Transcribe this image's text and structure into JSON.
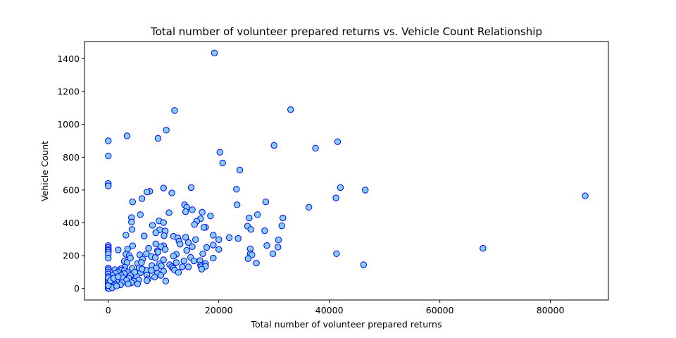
{
  "chart_data": {
    "type": "scatter",
    "title": "Total number of volunteer prepared returns vs. Vehicle Count Relationship",
    "xlabel": "Total number of volunteer prepared returns",
    "ylabel": "Vehicle Count",
    "xlim": [
      -4300,
      90500
    ],
    "ylim": [
      -70,
      1505
    ],
    "xticks": [
      0,
      20000,
      40000,
      60000,
      80000
    ],
    "yticks": [
      0,
      200,
      400,
      600,
      800,
      1000,
      1200,
      1400
    ],
    "grid": false,
    "legend": "none",
    "colors": {
      "marker_fill": "#87CEEB",
      "marker_edge": "#0000FF"
    },
    "points": [
      [
        19200,
        1435
      ],
      [
        33000,
        1090
      ],
      [
        12000,
        1085
      ],
      [
        10500,
        965
      ],
      [
        3400,
        930
      ],
      [
        9000,
        915
      ],
      [
        0,
        900
      ],
      [
        41500,
        895
      ],
      [
        30000,
        872
      ],
      [
        37500,
        855
      ],
      [
        20200,
        830
      ],
      [
        0,
        808
      ],
      [
        20700,
        765
      ],
      [
        23800,
        722
      ],
      [
        0,
        640
      ],
      [
        0,
        625
      ],
      [
        42000,
        615
      ],
      [
        15000,
        615
      ],
      [
        10000,
        612
      ],
      [
        46500,
        600
      ],
      [
        7500,
        592
      ],
      [
        7000,
        588
      ],
      [
        23200,
        605
      ],
      [
        11500,
        582
      ],
      [
        86300,
        565
      ],
      [
        6100,
        548
      ],
      [
        41200,
        552
      ],
      [
        4400,
        528
      ],
      [
        28500,
        528
      ],
      [
        23300,
        510
      ],
      [
        13800,
        510
      ],
      [
        36300,
        495
      ],
      [
        14200,
        495
      ],
      [
        15200,
        480
      ],
      [
        14000,
        468
      ],
      [
        17000,
        465
      ],
      [
        11000,
        462
      ],
      [
        5800,
        450
      ],
      [
        18500,
        442
      ],
      [
        27000,
        450
      ],
      [
        31600,
        430
      ],
      [
        16700,
        425
      ],
      [
        25500,
        430
      ],
      [
        4200,
        432
      ],
      [
        9200,
        412
      ],
      [
        16000,
        410
      ],
      [
        10000,
        402
      ],
      [
        4200,
        405
      ],
      [
        15600,
        390
      ],
      [
        8000,
        385
      ],
      [
        31400,
        382
      ],
      [
        25200,
        380
      ],
      [
        17600,
        373
      ],
      [
        17300,
        372
      ],
      [
        4300,
        360
      ],
      [
        25800,
        360
      ],
      [
        9300,
        358
      ],
      [
        28300,
        352
      ],
      [
        10300,
        350
      ],
      [
        8600,
        340
      ],
      [
        19000,
        325
      ],
      [
        3200,
        325
      ],
      [
        6500,
        320
      ],
      [
        10100,
        322
      ],
      [
        21900,
        310
      ],
      [
        11800,
        318
      ],
      [
        12600,
        308
      ],
      [
        23500,
        305
      ],
      [
        15800,
        298
      ],
      [
        30800,
        296
      ],
      [
        14000,
        312
      ],
      [
        12800,
        288
      ],
      [
        14500,
        280
      ],
      [
        20000,
        298
      ],
      [
        8600,
        272
      ],
      [
        13000,
        270
      ],
      [
        10000,
        260
      ],
      [
        4400,
        260
      ],
      [
        9500,
        255
      ],
      [
        28700,
        262
      ],
      [
        15200,
        255
      ],
      [
        19000,
        265
      ],
      [
        30700,
        252
      ],
      [
        17800,
        250
      ],
      [
        7300,
        245
      ],
      [
        10300,
        238
      ],
      [
        3500,
        240
      ],
      [
        8900,
        230
      ],
      [
        9000,
        222
      ],
      [
        14200,
        232
      ],
      [
        1800,
        235
      ],
      [
        0,
        262
      ],
      [
        0,
        250
      ],
      [
        0,
        240
      ],
      [
        0,
        232
      ],
      [
        0,
        222
      ],
      [
        0,
        210
      ],
      [
        25700,
        242
      ],
      [
        20000,
        238
      ],
      [
        67800,
        245
      ],
      [
        12300,
        208
      ],
      [
        17100,
        212
      ],
      [
        3200,
        208
      ],
      [
        6900,
        212
      ],
      [
        5700,
        205
      ],
      [
        11800,
        198
      ],
      [
        3800,
        200
      ],
      [
        25700,
        212
      ],
      [
        26000,
        205
      ],
      [
        29800,
        212
      ],
      [
        41300,
        212
      ],
      [
        7800,
        195
      ],
      [
        0,
        185
      ],
      [
        8500,
        188
      ],
      [
        25300,
        182
      ],
      [
        14900,
        190
      ],
      [
        19000,
        185
      ],
      [
        4000,
        185
      ],
      [
        6200,
        178
      ],
      [
        13700,
        168
      ],
      [
        16600,
        170
      ],
      [
        15500,
        168
      ],
      [
        10000,
        175
      ],
      [
        2900,
        165
      ],
      [
        12300,
        158
      ],
      [
        3400,
        158
      ],
      [
        17600,
        152
      ],
      [
        26800,
        155
      ],
      [
        5300,
        152
      ],
      [
        6000,
        158
      ],
      [
        9300,
        150
      ],
      [
        11100,
        145
      ],
      [
        16700,
        142
      ],
      [
        11500,
        132
      ],
      [
        13400,
        132
      ],
      [
        14500,
        132
      ],
      [
        16800,
        132
      ],
      [
        17600,
        135
      ],
      [
        46200,
        145
      ],
      [
        7900,
        140
      ],
      [
        9600,
        138
      ],
      [
        16900,
        118
      ],
      [
        3000,
        130
      ],
      [
        5600,
        125
      ],
      [
        8700,
        125
      ],
      [
        11800,
        122
      ],
      [
        4300,
        122
      ],
      [
        2300,
        120
      ],
      [
        1200,
        115
      ],
      [
        0,
        125
      ],
      [
        0,
        115
      ],
      [
        2400,
        112
      ],
      [
        2900,
        108
      ],
      [
        0,
        100
      ],
      [
        7800,
        110
      ],
      [
        6800,
        112
      ],
      [
        12000,
        112
      ],
      [
        10000,
        105
      ],
      [
        1700,
        100
      ],
      [
        3500,
        97
      ],
      [
        5800,
        95
      ],
      [
        12700,
        98
      ],
      [
        8900,
        92
      ],
      [
        1300,
        92
      ],
      [
        2900,
        90
      ],
      [
        0,
        88
      ],
      [
        7000,
        82
      ],
      [
        2300,
        80
      ],
      [
        800,
        78
      ],
      [
        4000,
        78
      ],
      [
        5100,
        75
      ],
      [
        9500,
        80
      ],
      [
        0,
        72
      ],
      [
        1500,
        68
      ],
      [
        2600,
        65
      ],
      [
        3700,
        62
      ],
      [
        8400,
        70
      ],
      [
        7200,
        58
      ],
      [
        0,
        58
      ],
      [
        600,
        58
      ],
      [
        5500,
        52
      ],
      [
        1300,
        55
      ],
      [
        3300,
        50
      ],
      [
        4600,
        45
      ],
      [
        7000,
        48
      ],
      [
        10400,
        45
      ],
      [
        0,
        45
      ],
      [
        0,
        38
      ],
      [
        800,
        40
      ],
      [
        1600,
        38
      ],
      [
        2500,
        35
      ],
      [
        4200,
        35
      ],
      [
        0,
        30
      ],
      [
        500,
        28
      ],
      [
        1100,
        30
      ],
      [
        5300,
        28
      ],
      [
        3600,
        28
      ],
      [
        2200,
        22
      ],
      [
        0,
        22
      ],
      [
        400,
        20
      ],
      [
        900,
        18
      ],
      [
        0,
        15
      ],
      [
        200,
        12
      ],
      [
        600,
        10
      ],
      [
        0,
        8
      ],
      [
        0,
        5
      ],
      [
        300,
        5
      ],
      [
        0,
        3
      ],
      [
        0,
        1
      ],
      [
        100,
        0
      ],
      [
        700,
        4
      ],
      [
        1500,
        15
      ],
      [
        0,
        18
      ],
      [
        0,
        52
      ],
      [
        0,
        65
      ],
      [
        400,
        48
      ],
      [
        1000,
        62
      ],
      [
        1800,
        72
      ],
      [
        4800,
        100
      ],
      [
        6100,
        118
      ]
    ]
  }
}
